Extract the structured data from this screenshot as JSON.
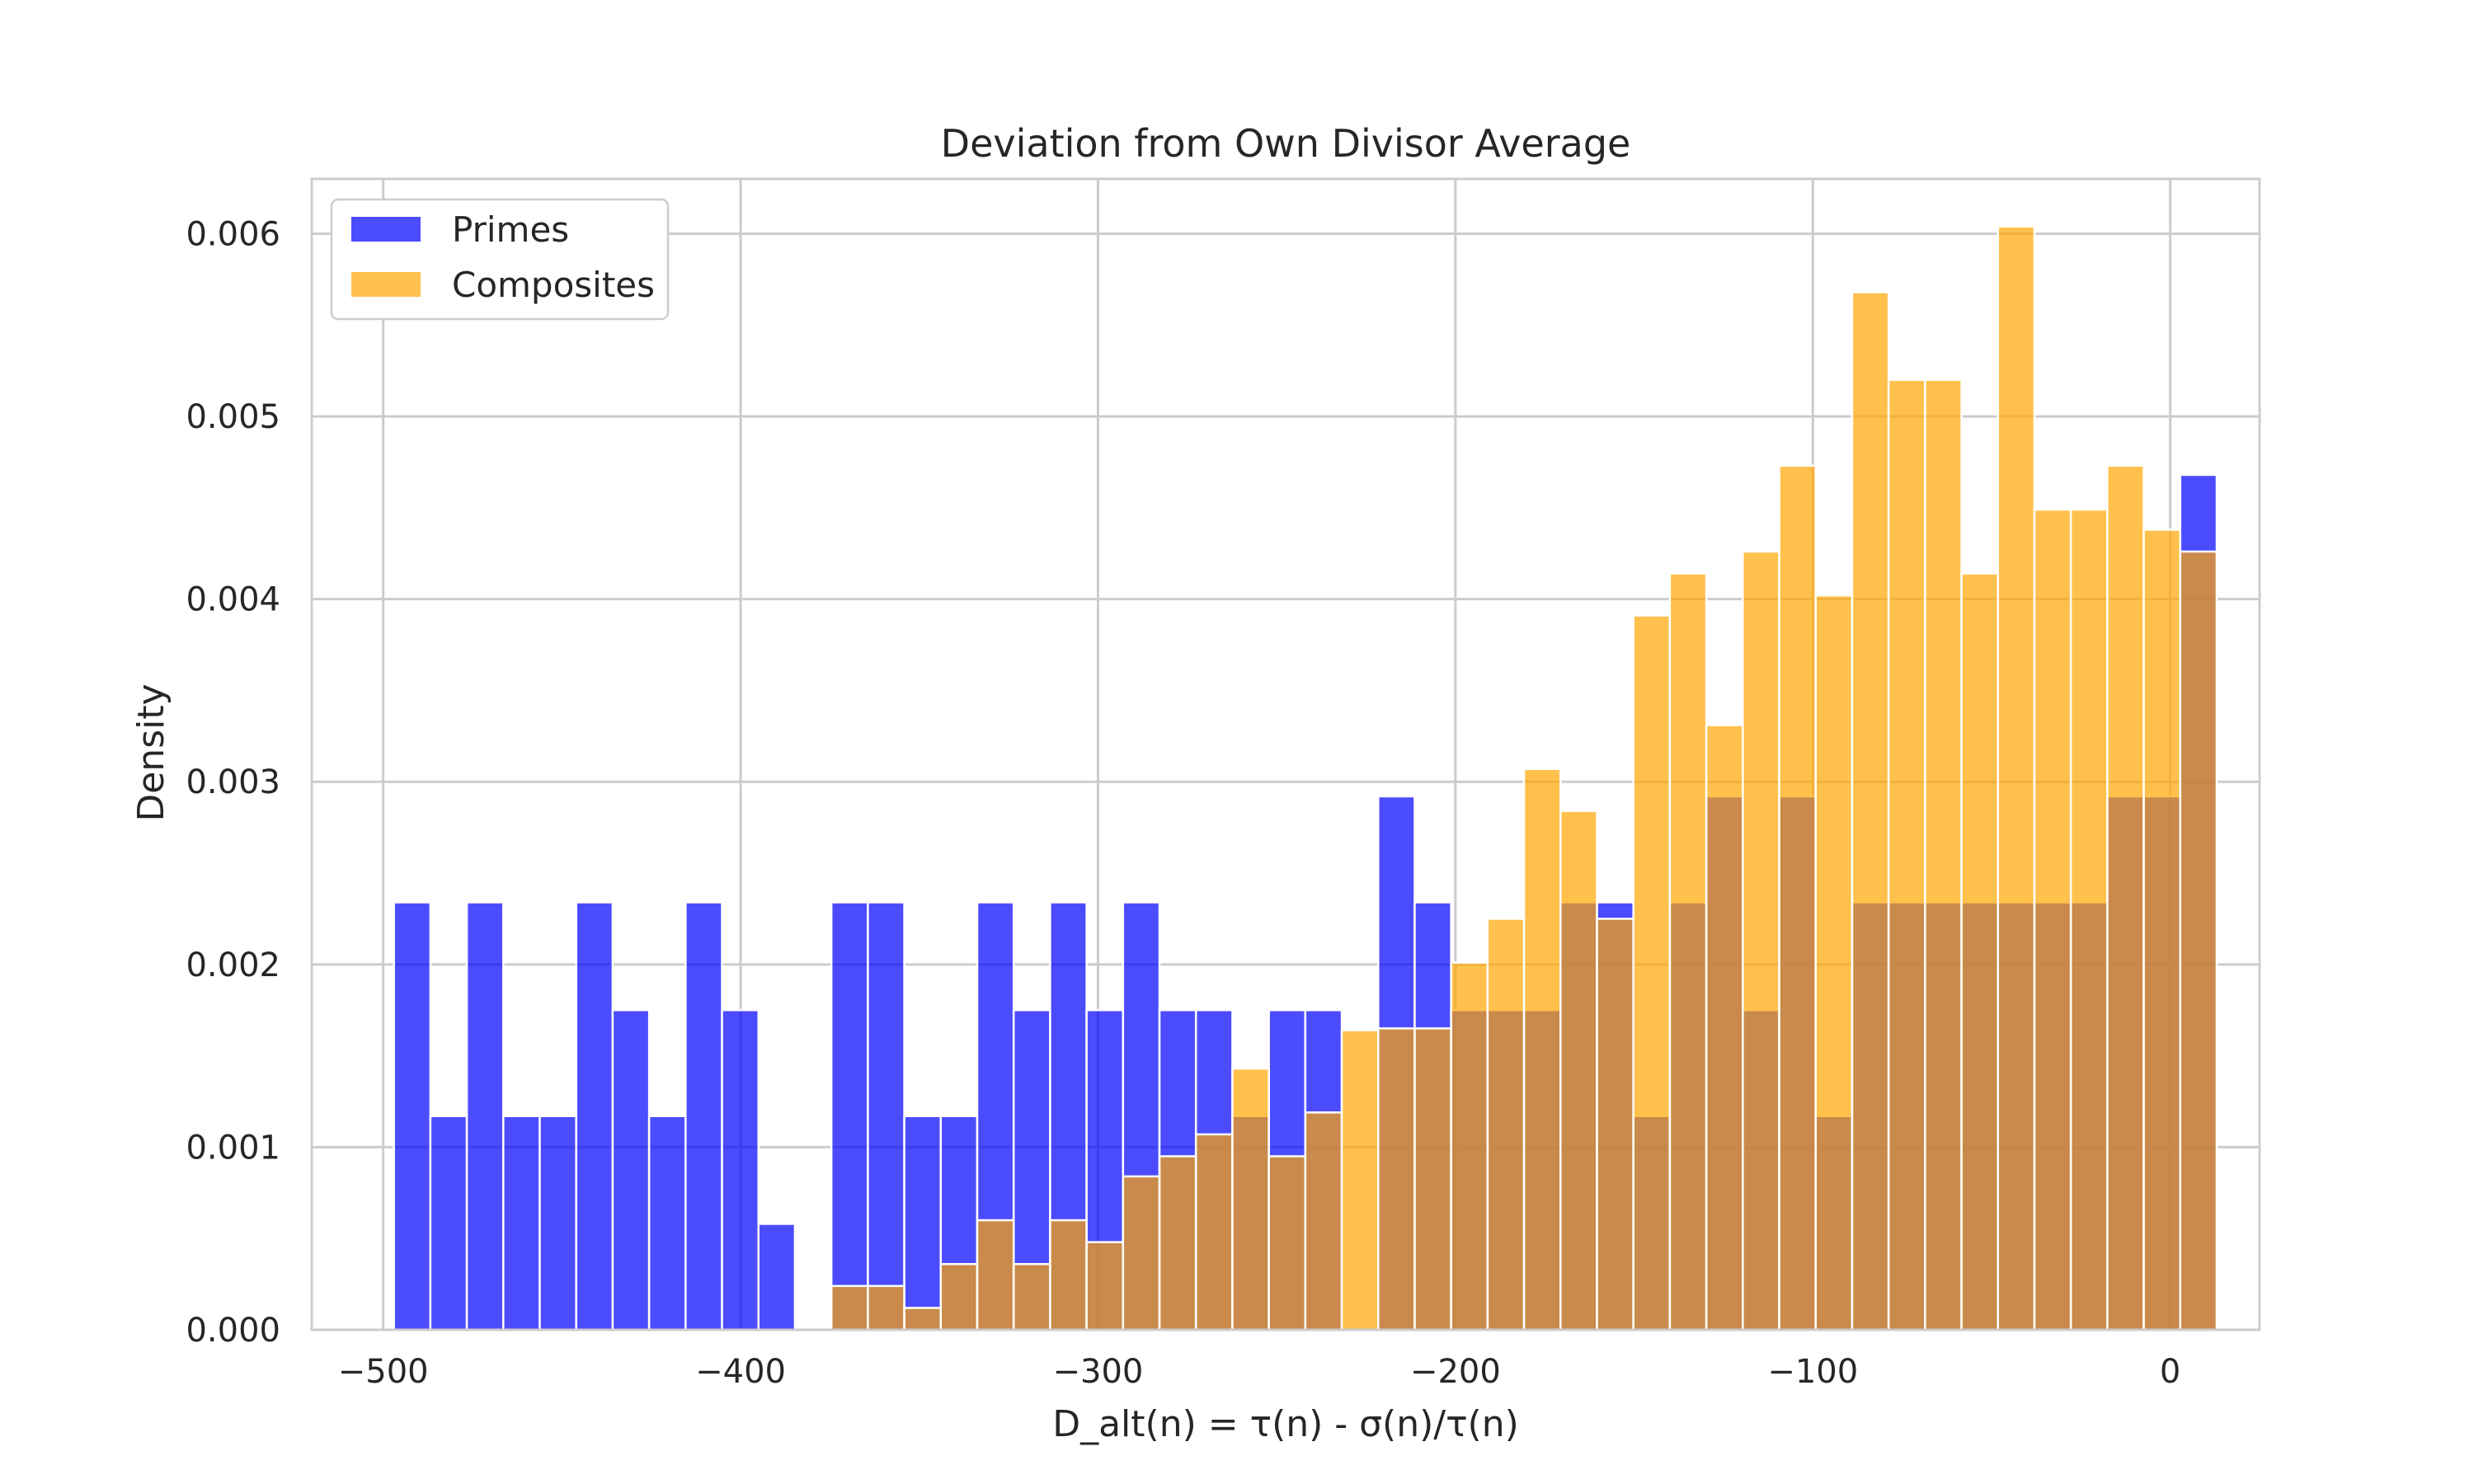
{
  "chart_data": {
    "type": "bar",
    "title": "Deviation from Own Divisor Average",
    "xlabel": "D_alt(n) = τ(n) - σ(n)/τ(n)",
    "ylabel": "Density",
    "xlim": [
      -520,
      25
    ],
    "ylim": [
      0,
      0.0063
    ],
    "xticks": [
      -500,
      -400,
      -300,
      -200,
      -100,
      0
    ],
    "xtick_labels": [
      "−500",
      "−400",
      "−300",
      "−200",
      "−100",
      "0"
    ],
    "yticks": [
      0,
      0.001,
      0.002,
      0.003,
      0.004,
      0.005,
      0.006
    ],
    "ytick_labels": [
      "0.000",
      "0.001",
      "0.002",
      "0.003",
      "0.004",
      "0.005",
      "0.006"
    ],
    "grid": true,
    "legend_position": "top-left",
    "bin_start": -497,
    "bin_width": 10.2,
    "series": [
      {
        "name": "Primes",
        "color": "#0000ff",
        "opacity": 0.7,
        "values": [
          0.00234,
          0.00117,
          0.00234,
          0.00117,
          0.00117,
          0.00234,
          0.00175,
          0.00117,
          0.00234,
          0.00175,
          0.00058,
          0,
          0.00234,
          0.00234,
          0.00117,
          0.00117,
          0.00234,
          0.00175,
          0.00234,
          0.00175,
          0.00234,
          0.00175,
          0.00175,
          0.00117,
          0.00175,
          0.00175,
          0,
          0.00292,
          0.00234,
          0.00175,
          0.00175,
          0.00175,
          0.00234,
          0.00234,
          0.00117,
          0.00234,
          0.00292,
          0.00175,
          0.00292,
          0.00117,
          0.00234,
          0.00234,
          0.00234,
          0.00234,
          0.00234,
          0.00234,
          0.00234,
          0.00292,
          0.00292,
          0.00468
        ]
      },
      {
        "name": "Composites",
        "color": "#ffa500",
        "opacity": 0.7,
        "values": [
          0,
          0,
          0,
          0,
          0,
          0,
          0,
          0,
          0,
          0,
          0,
          0,
          0.00024,
          0.00024,
          0.00012,
          0.00036,
          0.0006,
          0.00036,
          0.0006,
          0.00048,
          0.00084,
          0.00095,
          0.00107,
          0.00143,
          0.00095,
          0.00119,
          0.00164,
          0.00165,
          0.00165,
          0.00201,
          0.00225,
          0.00307,
          0.00284,
          0.00225,
          0.00391,
          0.00414,
          0.00331,
          0.00426,
          0.00473,
          0.00402,
          0.00568,
          0.0052,
          0.0052,
          0.00414,
          0.00604,
          0.00449,
          0.00449,
          0.00473,
          0.00438,
          0.00426
        ]
      }
    ]
  }
}
